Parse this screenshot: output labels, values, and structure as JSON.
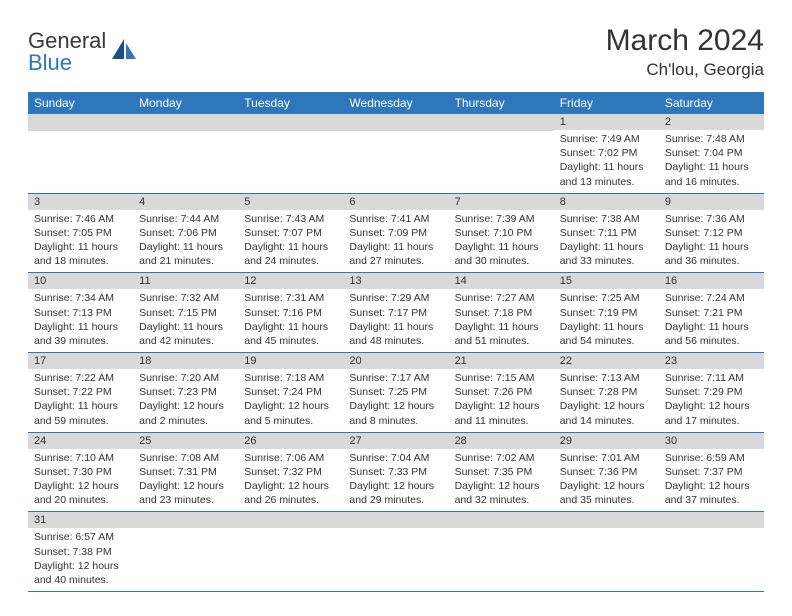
{
  "logo": {
    "word1": "General",
    "word2": "Blue"
  },
  "title": "March 2024",
  "location": "Ch'lou, Georgia",
  "colors": {
    "header_bg": "#2f77bc",
    "daynum_bg": "#d9d9d9",
    "rule": "#2f77bc",
    "text": "#333333",
    "white": "#ffffff"
  },
  "weekdays": [
    "Sunday",
    "Monday",
    "Tuesday",
    "Wednesday",
    "Thursday",
    "Friday",
    "Saturday"
  ],
  "weeks": [
    [
      null,
      null,
      null,
      null,
      null,
      {
        "n": "1",
        "sr": "Sunrise: 7:49 AM",
        "ss": "Sunset: 7:02 PM",
        "dl": "Daylight: 11 hours and 13 minutes."
      },
      {
        "n": "2",
        "sr": "Sunrise: 7:48 AM",
        "ss": "Sunset: 7:04 PM",
        "dl": "Daylight: 11 hours and 16 minutes."
      }
    ],
    [
      {
        "n": "3",
        "sr": "Sunrise: 7:46 AM",
        "ss": "Sunset: 7:05 PM",
        "dl": "Daylight: 11 hours and 18 minutes."
      },
      {
        "n": "4",
        "sr": "Sunrise: 7:44 AM",
        "ss": "Sunset: 7:06 PM",
        "dl": "Daylight: 11 hours and 21 minutes."
      },
      {
        "n": "5",
        "sr": "Sunrise: 7:43 AM",
        "ss": "Sunset: 7:07 PM",
        "dl": "Daylight: 11 hours and 24 minutes."
      },
      {
        "n": "6",
        "sr": "Sunrise: 7:41 AM",
        "ss": "Sunset: 7:09 PM",
        "dl": "Daylight: 11 hours and 27 minutes."
      },
      {
        "n": "7",
        "sr": "Sunrise: 7:39 AM",
        "ss": "Sunset: 7:10 PM",
        "dl": "Daylight: 11 hours and 30 minutes."
      },
      {
        "n": "8",
        "sr": "Sunrise: 7:38 AM",
        "ss": "Sunset: 7:11 PM",
        "dl": "Daylight: 11 hours and 33 minutes."
      },
      {
        "n": "9",
        "sr": "Sunrise: 7:36 AM",
        "ss": "Sunset: 7:12 PM",
        "dl": "Daylight: 11 hours and 36 minutes."
      }
    ],
    [
      {
        "n": "10",
        "sr": "Sunrise: 7:34 AM",
        "ss": "Sunset: 7:13 PM",
        "dl": "Daylight: 11 hours and 39 minutes."
      },
      {
        "n": "11",
        "sr": "Sunrise: 7:32 AM",
        "ss": "Sunset: 7:15 PM",
        "dl": "Daylight: 11 hours and 42 minutes."
      },
      {
        "n": "12",
        "sr": "Sunrise: 7:31 AM",
        "ss": "Sunset: 7:16 PM",
        "dl": "Daylight: 11 hours and 45 minutes."
      },
      {
        "n": "13",
        "sr": "Sunrise: 7:29 AM",
        "ss": "Sunset: 7:17 PM",
        "dl": "Daylight: 11 hours and 48 minutes."
      },
      {
        "n": "14",
        "sr": "Sunrise: 7:27 AM",
        "ss": "Sunset: 7:18 PM",
        "dl": "Daylight: 11 hours and 51 minutes."
      },
      {
        "n": "15",
        "sr": "Sunrise: 7:25 AM",
        "ss": "Sunset: 7:19 PM",
        "dl": "Daylight: 11 hours and 54 minutes."
      },
      {
        "n": "16",
        "sr": "Sunrise: 7:24 AM",
        "ss": "Sunset: 7:21 PM",
        "dl": "Daylight: 11 hours and 56 minutes."
      }
    ],
    [
      {
        "n": "17",
        "sr": "Sunrise: 7:22 AM",
        "ss": "Sunset: 7:22 PM",
        "dl": "Daylight: 11 hours and 59 minutes."
      },
      {
        "n": "18",
        "sr": "Sunrise: 7:20 AM",
        "ss": "Sunset: 7:23 PM",
        "dl": "Daylight: 12 hours and 2 minutes."
      },
      {
        "n": "19",
        "sr": "Sunrise: 7:18 AM",
        "ss": "Sunset: 7:24 PM",
        "dl": "Daylight: 12 hours and 5 minutes."
      },
      {
        "n": "20",
        "sr": "Sunrise: 7:17 AM",
        "ss": "Sunset: 7:25 PM",
        "dl": "Daylight: 12 hours and 8 minutes."
      },
      {
        "n": "21",
        "sr": "Sunrise: 7:15 AM",
        "ss": "Sunset: 7:26 PM",
        "dl": "Daylight: 12 hours and 11 minutes."
      },
      {
        "n": "22",
        "sr": "Sunrise: 7:13 AM",
        "ss": "Sunset: 7:28 PM",
        "dl": "Daylight: 12 hours and 14 minutes."
      },
      {
        "n": "23",
        "sr": "Sunrise: 7:11 AM",
        "ss": "Sunset: 7:29 PM",
        "dl": "Daylight: 12 hours and 17 minutes."
      }
    ],
    [
      {
        "n": "24",
        "sr": "Sunrise: 7:10 AM",
        "ss": "Sunset: 7:30 PM",
        "dl": "Daylight: 12 hours and 20 minutes."
      },
      {
        "n": "25",
        "sr": "Sunrise: 7:08 AM",
        "ss": "Sunset: 7:31 PM",
        "dl": "Daylight: 12 hours and 23 minutes."
      },
      {
        "n": "26",
        "sr": "Sunrise: 7:06 AM",
        "ss": "Sunset: 7:32 PM",
        "dl": "Daylight: 12 hours and 26 minutes."
      },
      {
        "n": "27",
        "sr": "Sunrise: 7:04 AM",
        "ss": "Sunset: 7:33 PM",
        "dl": "Daylight: 12 hours and 29 minutes."
      },
      {
        "n": "28",
        "sr": "Sunrise: 7:02 AM",
        "ss": "Sunset: 7:35 PM",
        "dl": "Daylight: 12 hours and 32 minutes."
      },
      {
        "n": "29",
        "sr": "Sunrise: 7:01 AM",
        "ss": "Sunset: 7:36 PM",
        "dl": "Daylight: 12 hours and 35 minutes."
      },
      {
        "n": "30",
        "sr": "Sunrise: 6:59 AM",
        "ss": "Sunset: 7:37 PM",
        "dl": "Daylight: 12 hours and 37 minutes."
      }
    ],
    [
      {
        "n": "31",
        "sr": "Sunrise: 6:57 AM",
        "ss": "Sunset: 7:38 PM",
        "dl": "Daylight: 12 hours and 40 minutes."
      },
      null,
      null,
      null,
      null,
      null,
      null
    ]
  ]
}
